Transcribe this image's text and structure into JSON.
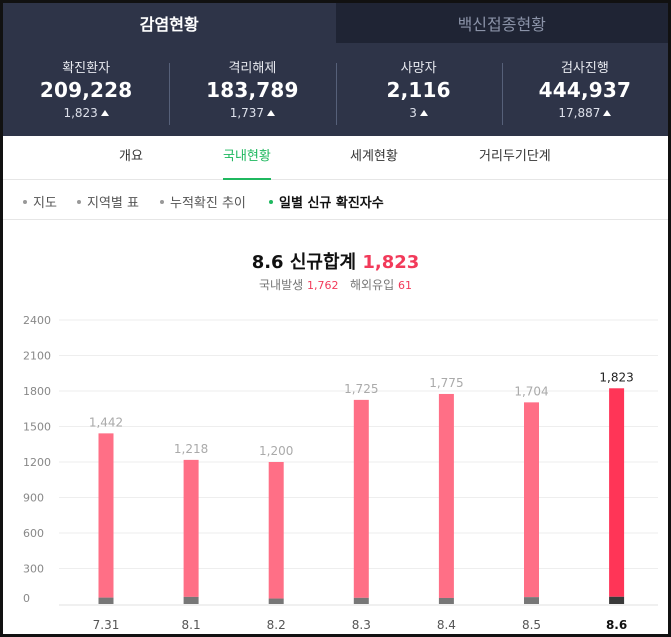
{
  "top_tabs": [
    {
      "label": "감염현황",
      "active": true
    },
    {
      "label": "백신접종현황",
      "active": false
    }
  ],
  "stats": [
    {
      "label": "확진환자",
      "value": "209,228",
      "delta": "1,823"
    },
    {
      "label": "격리해제",
      "value": "183,789",
      "delta": "1,737"
    },
    {
      "label": "사망자",
      "value": "2,116",
      "delta": "3"
    },
    {
      "label": "검사진행",
      "value": "444,937",
      "delta": "17,887"
    }
  ],
  "sub_tabs": [
    {
      "label": "개요",
      "active": false
    },
    {
      "label": "국내현황",
      "active": true
    },
    {
      "label": "세계현황",
      "active": false
    },
    {
      "label": "거리두기단계",
      "active": false
    }
  ],
  "pills": [
    {
      "label": "지도",
      "active": false
    },
    {
      "label": "지역별 표",
      "active": false
    },
    {
      "label": "누적확진 추이",
      "active": false
    },
    {
      "label": "일별 신규 확진자수",
      "active": true
    }
  ],
  "summary": {
    "title_prefix": "8.6 신규합계",
    "total": "1,823",
    "domestic_label": "국내발생",
    "domestic_value": "1,762",
    "overseas_label": "해외유입",
    "overseas_value": "61"
  },
  "colors": {
    "bar": "#ff6f86",
    "bar_current": "#ff3557",
    "overseas": "#777777",
    "overseas_current": "#3a3a3a",
    "accent_green": "#1fb85f"
  },
  "chart_data": {
    "type": "bar",
    "stacked": true,
    "categories": [
      "7.31",
      "8.1",
      "8.2",
      "8.3",
      "8.4",
      "8.5",
      "8.6"
    ],
    "totals": [
      1442,
      1218,
      1200,
      1725,
      1775,
      1704,
      1823
    ],
    "total_labels": [
      "1,442",
      "1,218",
      "1,200",
      "1,725",
      "1,775",
      "1,704",
      "1,823"
    ],
    "series": [
      {
        "name": "국내발생",
        "values": [
          1388,
          1158,
          1154,
          1673,
          1724,
          1646,
          1762
        ]
      },
      {
        "name": "해외유입",
        "values": [
          54,
          60,
          46,
          52,
          51,
          58,
          61
        ]
      }
    ],
    "y_ticks": [
      0,
      300,
      600,
      900,
      1200,
      1500,
      1800,
      2100,
      2400
    ],
    "ylim": [
      0,
      2400
    ],
    "grid": true,
    "highlight_index": 6
  }
}
